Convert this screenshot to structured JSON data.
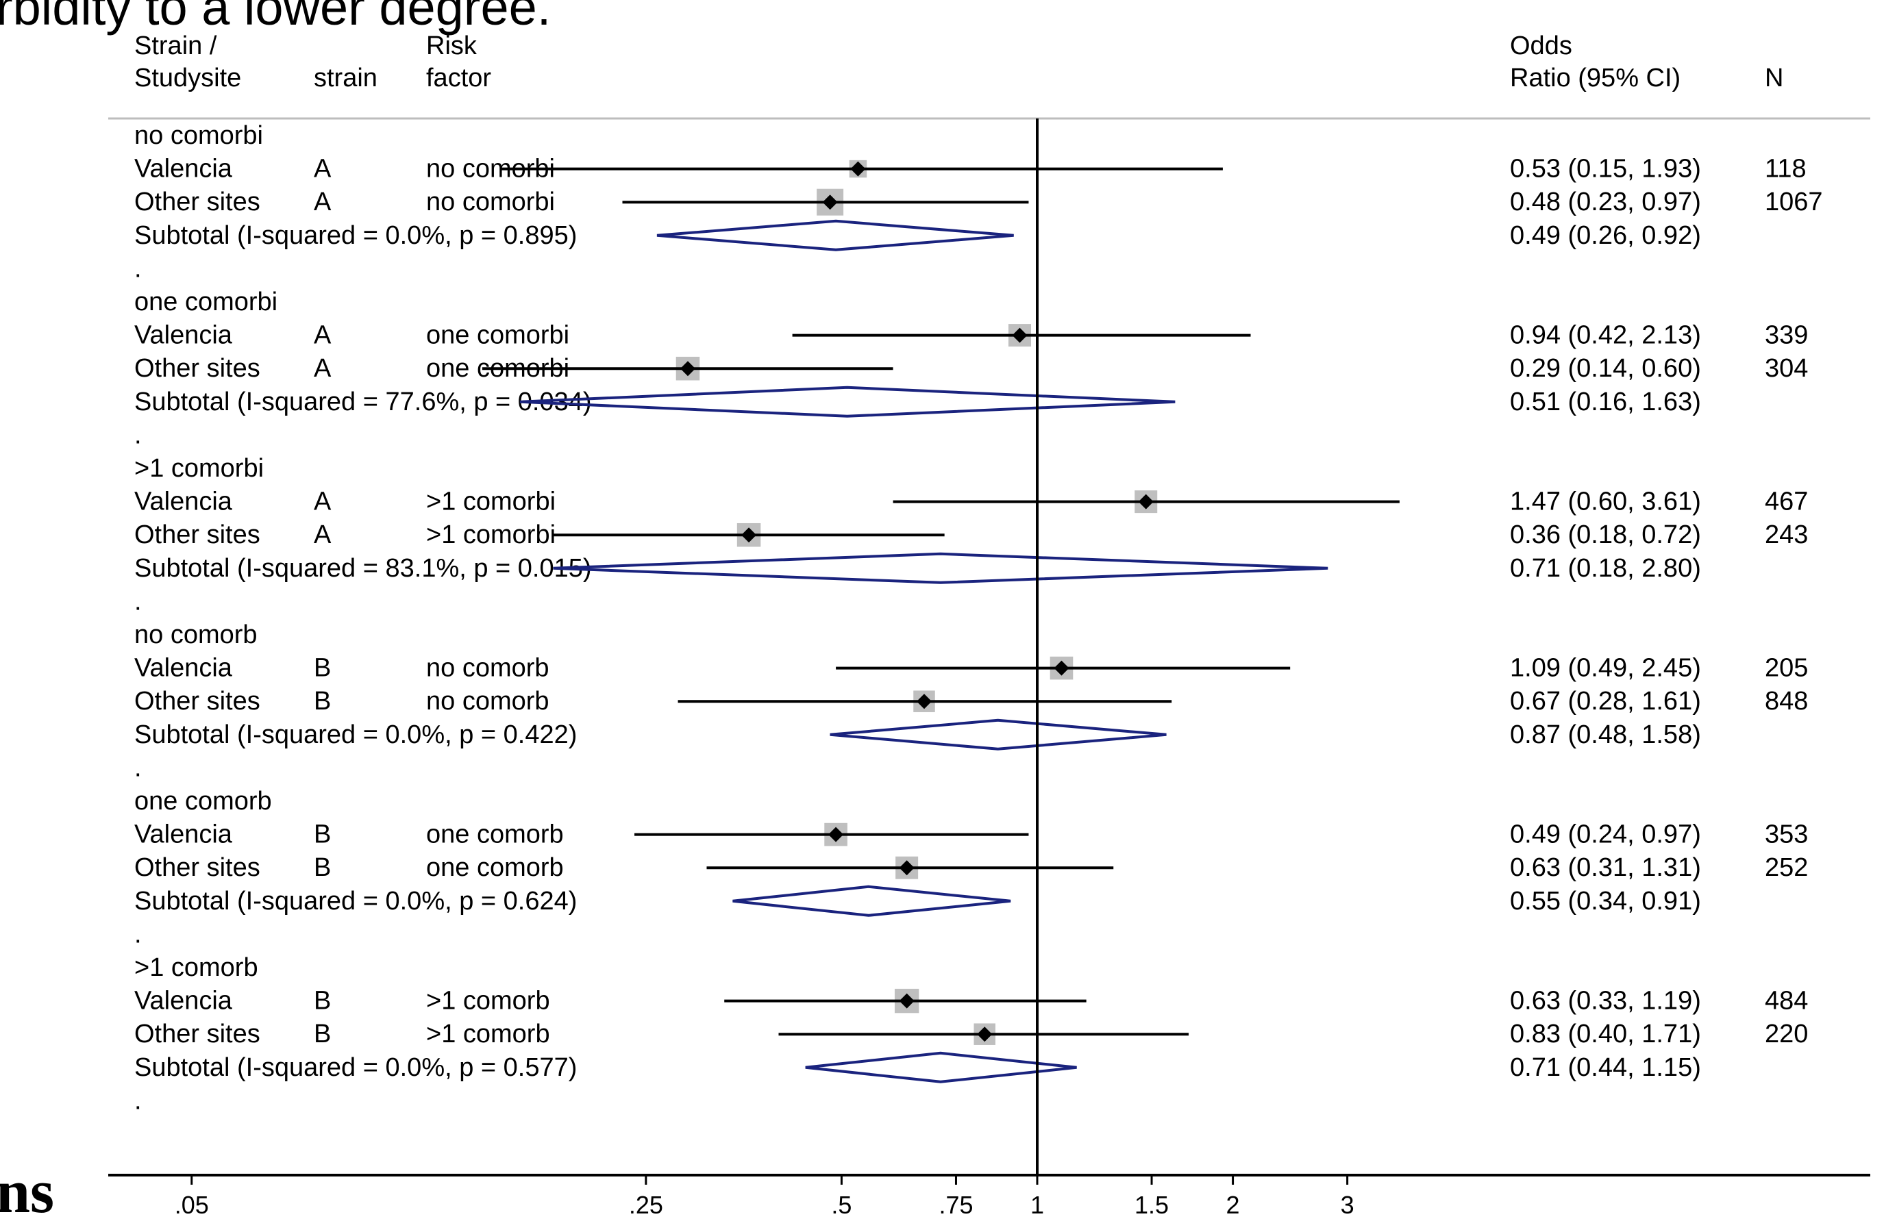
{
  "slide_text": {
    "top_fragment": "rbidity to a lower degree.",
    "left_fragment": "ns"
  },
  "chart_data": {
    "type": "forest",
    "title": "",
    "xlabel": "",
    "ylabel": "",
    "x_scale": "log",
    "xlim": [
      0.02,
      3.5
    ],
    "reference_line": 1,
    "x_ticks": [
      {
        "value": 0.05,
        "label": ".05"
      },
      {
        "value": 0.25,
        "label": ".25"
      },
      {
        "value": 0.5,
        "label": ".5"
      },
      {
        "value": 0.75,
        "label": ".75"
      },
      {
        "value": 1,
        "label": "1"
      },
      {
        "value": 1.5,
        "label": "1.5"
      },
      {
        "value": 2,
        "label": "2"
      },
      {
        "value": 3,
        "label": "3"
      }
    ],
    "columns": {
      "studysite_line1": "Strain /",
      "studysite_line2": "Studysite",
      "strain": "strain",
      "risk_line1": "Risk",
      "risk_line2": "factor",
      "or_line1": "Odds",
      "or_line2": "Ratio (95% CI)",
      "n": "N"
    },
    "groups": [
      {
        "label": "no comorbi",
        "studies": [
          {
            "site": "Valencia",
            "strain": "A",
            "risk": "no comorbi",
            "or": 0.53,
            "lo": 0.15,
            "hi": 1.93,
            "ci_text": "0.53 (0.15, 1.93)",
            "n": "118",
            "weight": 0.45
          },
          {
            "site": "Other sites",
            "strain": "A",
            "risk": "no comorbi",
            "or": 0.48,
            "lo": 0.23,
            "hi": 0.97,
            "ci_text": "0.48 (0.23, 0.97)",
            "n": "1067",
            "weight": 0.9
          }
        ],
        "subtotal": {
          "label": "Subtotal  (I-squared = 0.0%, p = 0.895)",
          "or": 0.49,
          "lo": 0.26,
          "hi": 0.92,
          "ci_text": "0.49 (0.26, 0.92)"
        }
      },
      {
        "label": "one comorbi",
        "studies": [
          {
            "site": "Valencia",
            "strain": "A",
            "risk": "one comorbi",
            "or": 0.94,
            "lo": 0.42,
            "hi": 2.13,
            "ci_text": "0.94 (0.42, 2.13)",
            "n": "339",
            "weight": 0.7
          },
          {
            "site": "Other sites",
            "strain": "A",
            "risk": "one comorbi",
            "or": 0.29,
            "lo": 0.14,
            "hi": 0.6,
            "ci_text": "0.29 (0.14, 0.60)",
            "n": "304",
            "weight": 0.75
          }
        ],
        "subtotal": {
          "label": "Subtotal  (I-squared = 77.6%, p = 0.034)",
          "or": 0.51,
          "lo": 0.16,
          "hi": 1.63,
          "ci_text": "0.51 (0.16, 1.63)"
        }
      },
      {
        "label": ">1 comorbi",
        "studies": [
          {
            "site": "Valencia",
            "strain": "A",
            "risk": ">1 comorbi",
            "or": 1.47,
            "lo": 0.6,
            "hi": 3.61,
            "ci_text": "1.47 (0.60, 3.61)",
            "n": "467",
            "weight": 0.7
          },
          {
            "site": "Other sites",
            "strain": "A",
            "risk": ">1 comorbi",
            "or": 0.36,
            "lo": 0.18,
            "hi": 0.72,
            "ci_text": "0.36 (0.18, 0.72)",
            "n": "243",
            "weight": 0.75
          }
        ],
        "subtotal": {
          "label": "Subtotal  (I-squared = 83.1%, p = 0.015)",
          "or": 0.71,
          "lo": 0.18,
          "hi": 2.8,
          "ci_text": "0.71 (0.18, 2.80)"
        }
      },
      {
        "label": "no comorb",
        "studies": [
          {
            "site": "Valencia",
            "strain": "B",
            "risk": "no comorb",
            "or": 1.09,
            "lo": 0.49,
            "hi": 2.45,
            "ci_text": "1.09 (0.49, 2.45)",
            "n": "205",
            "weight": 0.72
          },
          {
            "site": "Other sites",
            "strain": "B",
            "risk": "no comorb",
            "or": 0.67,
            "lo": 0.28,
            "hi": 1.61,
            "ci_text": "0.67 (0.28, 1.61)",
            "n": "848",
            "weight": 0.65
          }
        ],
        "subtotal": {
          "label": "Subtotal  (I-squared = 0.0%, p = 0.422)",
          "or": 0.87,
          "lo": 0.48,
          "hi": 1.58,
          "ci_text": "0.87 (0.48, 1.58)"
        }
      },
      {
        "label": "one comorb",
        "studies": [
          {
            "site": "Valencia",
            "strain": "B",
            "risk": "one comorb",
            "or": 0.49,
            "lo": 0.24,
            "hi": 0.97,
            "ci_text": "0.49 (0.24, 0.97)",
            "n": "353",
            "weight": 0.72
          },
          {
            "site": "Other sites",
            "strain": "B",
            "risk": "one comorb",
            "or": 0.63,
            "lo": 0.31,
            "hi": 1.31,
            "ci_text": "0.63 (0.31, 1.31)",
            "n": "252",
            "weight": 0.7
          }
        ],
        "subtotal": {
          "label": "Subtotal  (I-squared = 0.0%, p = 0.624)",
          "or": 0.55,
          "lo": 0.34,
          "hi": 0.91,
          "ci_text": "0.55 (0.34, 0.91)"
        }
      },
      {
        "label": ">1 comorb",
        "studies": [
          {
            "site": "Valencia",
            "strain": "B",
            "risk": ">1 comorb",
            "or": 0.63,
            "lo": 0.33,
            "hi": 1.19,
            "ci_text": "0.63 (0.33, 1.19)",
            "n": "484",
            "weight": 0.78
          },
          {
            "site": "Other sites",
            "strain": "B",
            "risk": ">1 comorb",
            "or": 0.83,
            "lo": 0.4,
            "hi": 1.71,
            "ci_text": "0.83 (0.40, 1.71)",
            "n": "220",
            "weight": 0.65
          }
        ],
        "subtotal": {
          "label": "Subtotal  (I-squared = 0.0%, p = 0.577)",
          "or": 0.71,
          "lo": 0.44,
          "hi": 1.15,
          "ci_text": "0.71 (0.44, 1.15)"
        }
      }
    ],
    "separator": ".",
    "colors": {
      "ci_line": "#000000",
      "point": "#000000",
      "weight_box": "#bfbfbf",
      "diamond": "#1a237e",
      "reference_line": "#000000",
      "header_rule": "#bdbdbd",
      "axis": "#000000"
    }
  }
}
